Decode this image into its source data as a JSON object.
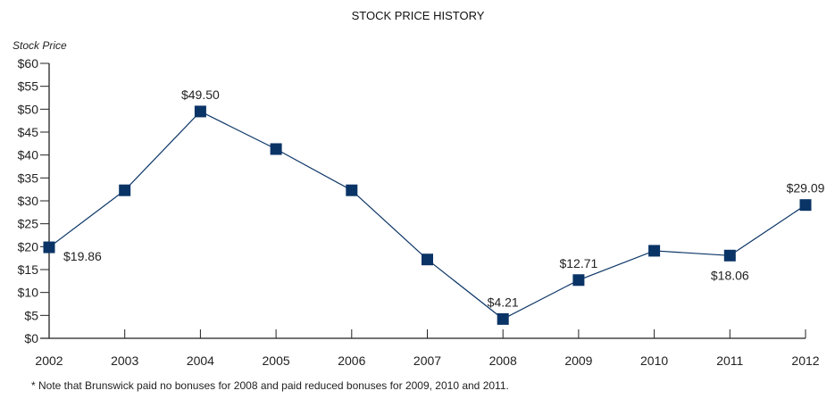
{
  "chart_data": {
    "type": "line",
    "title": "STOCK PRICE HISTORY",
    "xlabel": "",
    "ylabel": "Stock Price",
    "ylim": [
      0,
      60
    ],
    "y_ticks": [
      "$0",
      "$5",
      "$10",
      "$15",
      "$20",
      "$25",
      "$30",
      "$35",
      "$40",
      "$45",
      "$50",
      "$55",
      "$60"
    ],
    "y_tick_values": [
      0,
      5,
      10,
      15,
      20,
      25,
      30,
      35,
      40,
      45,
      50,
      55,
      60
    ],
    "grid": false,
    "categories": [
      "2002",
      "2003",
      "2004",
      "2005",
      "2006",
      "2007",
      "2008",
      "2009",
      "2010",
      "2011",
      "2012"
    ],
    "series": [
      {
        "name": "Stock Price",
        "color": "#0a3466",
        "values": [
          19.86,
          32.3,
          49.5,
          41.3,
          32.3,
          17.2,
          4.21,
          12.71,
          19.1,
          18.06,
          29.09
        ]
      }
    ],
    "data_labels": [
      {
        "index": 0,
        "text": "$19.86",
        "position": "below-right"
      },
      {
        "index": 2,
        "text": "$49.50",
        "position": "above"
      },
      {
        "index": 6,
        "text": "$4.21",
        "position": "above"
      },
      {
        "index": 7,
        "text": "$12.71",
        "position": "above"
      },
      {
        "index": 9,
        "text": "$18.06",
        "position": "below"
      },
      {
        "index": 10,
        "text": "$29.09",
        "position": "above"
      }
    ],
    "footnote": "* Note that Brunswick paid no bonuses for 2008 and paid reduced bonuses for 2009, 2010 and 2011."
  }
}
